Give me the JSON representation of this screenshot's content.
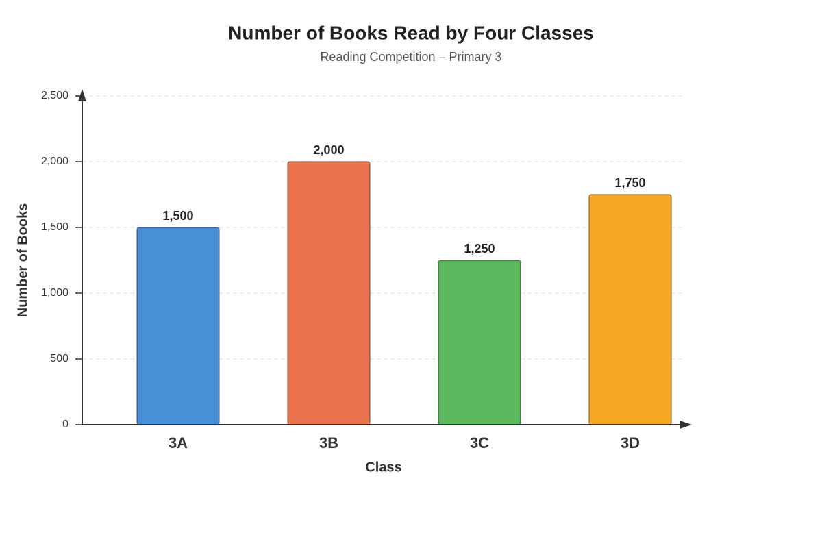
{
  "chart_data": {
    "type": "bar",
    "title": "Number of Books Read by Four Classes",
    "subtitle": "Reading Competition – Primary 3",
    "x_label": "Class",
    "y_label": "Number of Books",
    "categories": [
      "3A",
      "3B",
      "3C",
      "3D"
    ],
    "values": [
      1500,
      2000,
      1250,
      1750
    ],
    "value_labels": [
      "1,500",
      "2,000",
      "1,250",
      "1,750"
    ],
    "colors": [
      "#4a90d9",
      "#e8734a",
      "#5cb85c",
      "#f5a623"
    ],
    "ylim": [
      0,
      2500
    ],
    "yticks": [
      0,
      500,
      {
        "value": 1000,
        "label": "1,000"
      },
      {
        "value": 1500,
        "label": "1,500"
      },
      {
        "value": 2000,
        "label": "2,000"
      },
      {
        "value": 2500,
        "label": "2,500"
      }
    ],
    "grid": true
  }
}
